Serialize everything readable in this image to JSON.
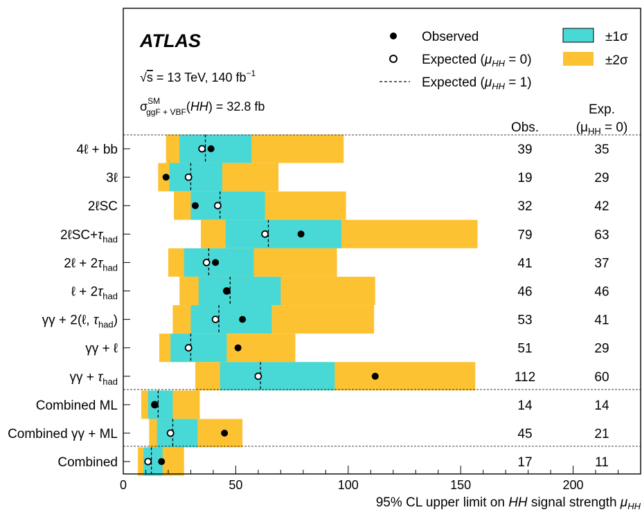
{
  "chart_data": {
    "type": "forest",
    "experiment": "ATLAS",
    "energy_label": "√s = 13 TeV, 140 fb⁻¹",
    "xsec_label": "σ_ggF+VBF^SM(HH) = 32.8 fb",
    "xlabel": "95% CL upper limit on HH signal strength μ_HH",
    "xlim": [
      0,
      230
    ],
    "xticks": [
      0,
      50,
      100,
      150,
      200
    ],
    "legend": {
      "observed": "Observed",
      "expected_mu0": "Expected (μHH = 0)",
      "expected_mu1": "Expected (μHH = 1)",
      "band1": "±1σ",
      "band2": "±2σ"
    },
    "columns": {
      "obs": "Obs.",
      "exp_line1": "Exp.",
      "exp_line2": "(μHH = 0)"
    },
    "colors": {
      "band1": "#48d9d7",
      "band2": "#fcc232",
      "marker": "#000000"
    },
    "rows": [
      {
        "label": "4ℓ + bb",
        "obs": 39,
        "exp": 35,
        "exp_mu1": 36.5,
        "s2": [
          19,
          98
        ],
        "s1": [
          25,
          57
        ]
      },
      {
        "label": "3ℓ",
        "obs": 19,
        "exp": 29,
        "exp_mu1": 30,
        "s2": [
          15.5,
          69
        ],
        "s1": [
          20.5,
          44
        ]
      },
      {
        "label": "2ℓSC",
        "obs": 32,
        "exp": 42,
        "exp_mu1": 43,
        "s2": [
          22.5,
          99
        ],
        "s1": [
          30,
          63
        ]
      },
      {
        "label": "2ℓSC+τhad",
        "obs": 79,
        "exp": 63,
        "exp_mu1": 64.5,
        "s2": [
          34.5,
          157.5
        ],
        "s1": [
          45.5,
          97
        ]
      },
      {
        "label": "2ℓ + 2τhad",
        "obs": 41,
        "exp": 37,
        "exp_mu1": 38,
        "s2": [
          20,
          95
        ],
        "s1": [
          27,
          58
        ]
      },
      {
        "label": "ℓ + 2τhad",
        "obs": 46,
        "exp": 46,
        "exp_mu1": 47.5,
        "s2": [
          25,
          112
        ],
        "s1": [
          33.5,
          70
        ]
      },
      {
        "label": "γγ + 2(ℓ, τhad)",
        "obs": 53,
        "exp": 41,
        "exp_mu1": 42.5,
        "s2": [
          22,
          111.5
        ],
        "s1": [
          30,
          66
        ]
      },
      {
        "label": "γγ + ℓ",
        "obs": 51,
        "exp": 29,
        "exp_mu1": 30,
        "s2": [
          16,
          76.5
        ],
        "s1": [
          21,
          46
        ]
      },
      {
        "label": "γγ + τhad",
        "obs": 112,
        "exp": 60,
        "exp_mu1": 61,
        "s2": [
          32,
          156.5
        ],
        "s1": [
          43,
          94
        ]
      },
      {
        "label": "Combined ML",
        "obs": 14,
        "exp": 14,
        "exp_mu1": 15.5,
        "s2": [
          8,
          34
        ],
        "s1": [
          11,
          22
        ]
      },
      {
        "label": "Combined γγ + ML",
        "obs": 45,
        "exp": 21,
        "exp_mu1": 22,
        "s2": [
          11.5,
          53
        ],
        "s1": [
          15,
          33
        ]
      },
      {
        "label": "Combined",
        "obs": 17,
        "exp": 11,
        "exp_mu1": 12.5,
        "s2": [
          6.5,
          27
        ],
        "s1": [
          9,
          17.5
        ]
      }
    ]
  }
}
